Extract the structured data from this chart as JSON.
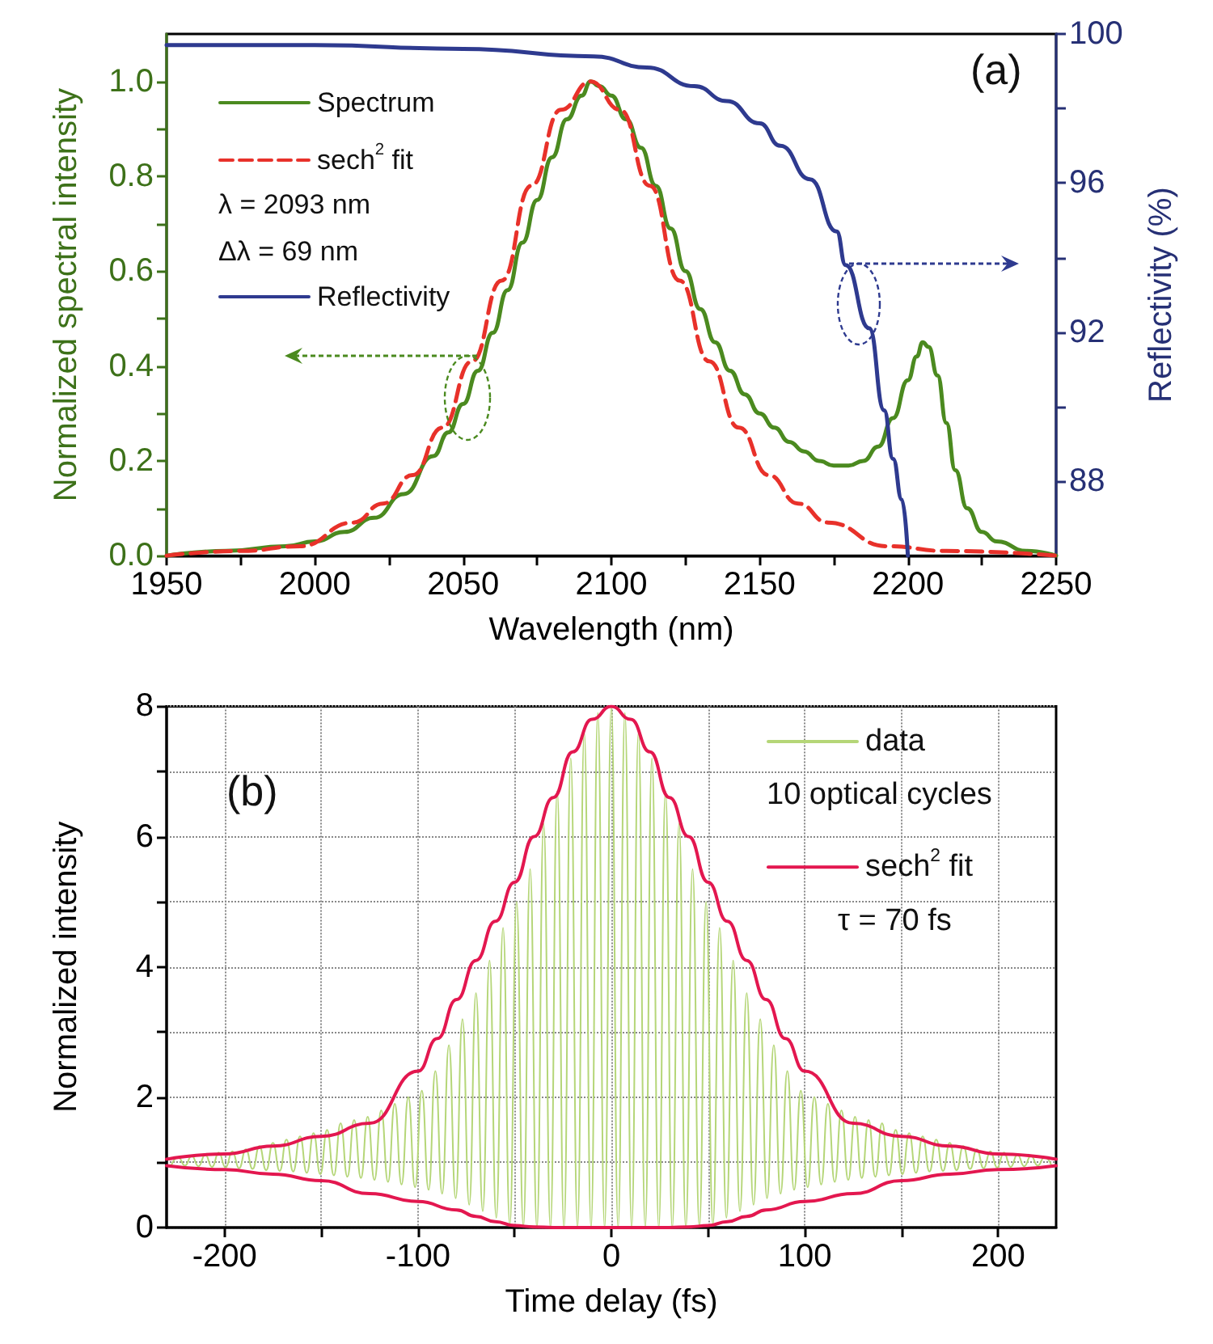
{
  "chart_data": [
    {
      "type": "line",
      "xlabel": "Wavelength (nm)",
      "ylabel": "Normalized spectral intensity",
      "y2label": "Reflectivity (%)",
      "annotations": [
        "λ = 2093 nm",
        "Δλ = 69 nm",
        "(a)"
      ],
      "xlim": [
        1950,
        2250
      ],
      "xticks": [
        1950,
        {
          "value": 1975,
          "label": null
        },
        2000,
        {
          "value": 2025,
          "label": null
        },
        2050,
        {
          "value": 2075,
          "label": null
        },
        2100,
        {
          "value": 2125,
          "label": null
        },
        2150,
        {
          "value": 2175,
          "label": null
        },
        2200,
        {
          "value": 2225,
          "label": null
        },
        2250
      ],
      "ylim": [
        0,
        1.1
      ],
      "yticks": [
        {
          "value": 0,
          "label": "0.0"
        },
        {
          "value": 0.1,
          "label": null
        },
        {
          "value": 0.2,
          "label": "0.2"
        },
        {
          "value": 0.3,
          "label": null
        },
        {
          "value": 0.4,
          "label": "0.4"
        },
        {
          "value": 0.5,
          "label": null
        },
        {
          "value": 0.6,
          "label": "0.6"
        },
        {
          "value": 0.7,
          "label": null
        },
        {
          "value": 0.8,
          "label": "0.8"
        },
        {
          "value": 0.9,
          "label": null
        },
        {
          "value": 1,
          "label": "1.0"
        }
      ],
      "y2lim": [
        86,
        100
      ],
      "y2ticks": [
        88,
        {
          "value": 90,
          "label": null
        },
        92,
        {
          "value": 94,
          "label": null
        },
        96,
        {
          "value": 98,
          "label": null
        },
        100
      ],
      "legend": "top left",
      "series": [
        {
          "name": "Spectrum",
          "color": "#4b8a1f",
          "x": [
            1950,
            1970,
            1990,
            2000,
            2010,
            2020,
            2030,
            2040,
            2045,
            2050,
            2055,
            2060,
            2065,
            2070,
            2075,
            2080,
            2085,
            2090,
            2093,
            2096,
            2100,
            2105,
            2110,
            2115,
            2120,
            2125,
            2130,
            2135,
            2140,
            2145,
            2150,
            2155,
            2160,
            2165,
            2170,
            2175,
            2180,
            2185,
            2190,
            2195,
            2200,
            2203,
            2205,
            2207,
            2210,
            2213,
            2216,
            2220,
            2225,
            2230,
            2240,
            2250
          ],
          "values": [
            0.0,
            0.01,
            0.02,
            0.03,
            0.05,
            0.08,
            0.13,
            0.21,
            0.26,
            0.32,
            0.39,
            0.47,
            0.56,
            0.66,
            0.75,
            0.84,
            0.92,
            0.97,
            1.0,
            0.99,
            0.97,
            0.92,
            0.86,
            0.78,
            0.69,
            0.6,
            0.52,
            0.45,
            0.39,
            0.34,
            0.3,
            0.27,
            0.24,
            0.22,
            0.2,
            0.19,
            0.19,
            0.2,
            0.23,
            0.29,
            0.37,
            0.42,
            0.45,
            0.44,
            0.38,
            0.28,
            0.18,
            0.1,
            0.05,
            0.03,
            0.01,
            0.0
          ]
        },
        {
          "name": "sech$^{2}$ fit",
          "color": "#e8312a",
          "line_style": "dashed",
          "x": [
            1950,
            1975,
            1995,
            2013,
            2023,
            2033,
            2043,
            2053,
            2063,
            2073,
            2083,
            2093,
            2103,
            2113,
            2123,
            2133,
            2143,
            2153,
            2163,
            2173,
            2193,
            2213,
            2250
          ],
          "values": [
            0,
            0.01,
            0.02,
            0.07,
            0.11,
            0.17,
            0.27,
            0.41,
            0.58,
            0.78,
            0.94,
            1.0,
            0.94,
            0.78,
            0.58,
            0.41,
            0.27,
            0.17,
            0.11,
            0.07,
            0.02,
            0.01,
            0
          ]
        },
        {
          "name": "Reflectivity",
          "color": "#2e3a8f",
          "axis": "y2",
          "x": [
            1950,
            2000,
            2050,
            2094,
            2112,
            2128,
            2139,
            2150,
            2157,
            2167,
            2176,
            2179,
            2187,
            2192,
            2195,
            2198,
            2200
          ],
          "values": [
            99.7,
            99.7,
            99.6,
            99.4,
            99.1,
            98.6,
            98.2,
            97.6,
            97.0,
            96.1,
            94.7,
            93.8,
            92.1,
            89.9,
            88.6,
            87.5,
            86.0
          ]
        }
      ]
    },
    {
      "type": "line",
      "xlabel": "Time delay (fs)",
      "ylabel": "Normalized intensity",
      "annotations": [
        "10 optical cycles",
        "τ = 70 fs",
        "(b)"
      ],
      "xlim": [
        -230,
        230
      ],
      "xticks": [
        -200,
        {
          "value": -150,
          "label": null
        },
        -100,
        {
          "value": -50,
          "label": null
        },
        0,
        {
          "value": 50,
          "label": null
        },
        100,
        {
          "value": 150,
          "label": null
        },
        200
      ],
      "ylim": [
        0,
        8
      ],
      "yticks": [
        0,
        {
          "value": 1,
          "label": null
        },
        2,
        {
          "value": 3,
          "label": null
        },
        4,
        {
          "value": 5,
          "label": null
        },
        6,
        {
          "value": 7,
          "label": null
        },
        8
      ],
      "grid": true,
      "legend": "top right",
      "series": [
        {
          "name": "data",
          "color": "#b5d678",
          "x": [
            -227.5,
            -224,
            -220.5,
            -217,
            -213.5,
            -210,
            -206.5,
            -203,
            -199.5,
            -196,
            -192.5,
            -189,
            -185.5,
            -182,
            -178.5,
            -175,
            -171.5,
            -168,
            -164.5,
            -161,
            -157.5,
            -154,
            -150.5,
            -147,
            -143.5,
            -140,
            -136.5,
            -133,
            -129.5,
            -126,
            -122.5,
            -119,
            -115.5,
            -112,
            -108.5,
            -105,
            -101.5,
            -98,
            -94.5,
            -91,
            -87.5,
            -84,
            -80.5,
            -77,
            -73.5,
            -70,
            -66.5,
            -63,
            -59.5,
            -56,
            -52.5,
            -49,
            -45.5,
            -42,
            -38.5,
            -35,
            -31.5,
            -28,
            -24.5,
            -21,
            -17.5,
            -14,
            -10.5,
            -7,
            -3.5,
            0,
            3.5,
            7,
            10.5,
            14,
            17.5,
            21,
            24.5,
            28,
            31.5,
            35,
            38.5,
            42,
            45.5,
            49,
            52.5,
            56,
            59.5,
            63,
            66.5,
            70,
            73.5,
            77,
            80.5,
            84,
            87.5,
            91,
            94.5,
            98,
            101.5,
            105,
            108.5,
            112,
            115.5,
            119,
            122.5,
            126,
            129.5,
            133,
            136.5,
            140,
            143.5,
            147,
            150.5,
            154,
            157.5,
            161,
            164.5,
            168,
            171.5,
            175,
            178.5,
            182,
            185.5,
            189,
            192.5,
            196,
            199.5,
            203,
            206.5,
            210,
            213.5,
            217,
            220.5,
            224,
            227.5
          ],
          "values": [
            0.96,
            1.08,
            0.95,
            1.1,
            0.94,
            1.12,
            0.93,
            1.15,
            0.92,
            1.17,
            0.91,
            1.2,
            0.9,
            1.25,
            0.88,
            1.3,
            0.87,
            1.35,
            0.86,
            1.4,
            0.84,
            1.45,
            0.82,
            1.5,
            0.8,
            1.6,
            0.78,
            1.65,
            0.76,
            1.7,
            0.73,
            1.8,
            0.7,
            1.9,
            0.66,
            2.0,
            0.62,
            2.1,
            0.58,
            2.4,
            0.52,
            2.8,
            0.45,
            3.2,
            0.35,
            3.6,
            0.25,
            4.1,
            0.15,
            4.6,
            0.05,
            5.0,
            0.02,
            5.5,
            0,
            6.2,
            0,
            6.7,
            0,
            7.2,
            0,
            7.6,
            0,
            7.9,
            0,
            8.0,
            0,
            7.9,
            0,
            7.6,
            0,
            7.2,
            0,
            6.7,
            0,
            6.2,
            0,
            5.5,
            0.02,
            5.0,
            0.05,
            4.6,
            0.15,
            4.1,
            0.25,
            3.6,
            0.35,
            3.2,
            0.45,
            2.8,
            0.52,
            2.4,
            0.58,
            2.1,
            0.62,
            2.0,
            0.66,
            1.9,
            0.7,
            1.8,
            0.73,
            1.7,
            0.76,
            1.65,
            0.78,
            1.6,
            0.8,
            1.5,
            0.82,
            1.45,
            0.84,
            1.4,
            0.86,
            1.35,
            0.87,
            1.3,
            0.88,
            1.25,
            0.9,
            1.2,
            0.91,
            1.17,
            0.92,
            1.15,
            0.93,
            1.12,
            0.94,
            1.1,
            0.95,
            1.08,
            0.96
          ]
        },
        {
          "name": "sech$^{2}$ fit",
          "color": "#e3174f",
          "x": [
            -230,
            -200,
            -175,
            -150,
            -125,
            -100,
            -90,
            -80,
            -70,
            -60,
            -50,
            -40,
            -30,
            -20,
            -10,
            0,
            10,
            20,
            30,
            40,
            50,
            60,
            70,
            80,
            90,
            100,
            125,
            150,
            175,
            200,
            230
          ],
          "values": [
            1.05,
            1.13,
            1.25,
            1.4,
            1.6,
            2.4,
            2.9,
            3.5,
            4.1,
            4.7,
            5.3,
            6.0,
            6.6,
            7.3,
            7.8,
            8,
            7.8,
            7.3,
            6.6,
            6.0,
            5.3,
            4.7,
            4.1,
            3.5,
            2.9,
            2.4,
            1.6,
            1.4,
            1.25,
            1.13,
            1.05
          ]
        },
        {
          "color": "#e3174f",
          "x": [
            -230,
            -200,
            -175,
            -150,
            -125,
            -100,
            -80,
            -70,
            -60,
            -50,
            -40,
            -30,
            0,
            30,
            40,
            50,
            60,
            70,
            80,
            100,
            125,
            150,
            175,
            200,
            230
          ],
          "values": [
            0.95,
            0.89,
            0.82,
            0.72,
            0.52,
            0.4,
            0.27,
            0.17,
            0.09,
            0.03,
            0.01,
            0,
            0,
            0,
            0.01,
            0.03,
            0.09,
            0.17,
            0.27,
            0.4,
            0.52,
            0.72,
            0.82,
            0.89,
            0.95
          ]
        }
      ]
    }
  ]
}
